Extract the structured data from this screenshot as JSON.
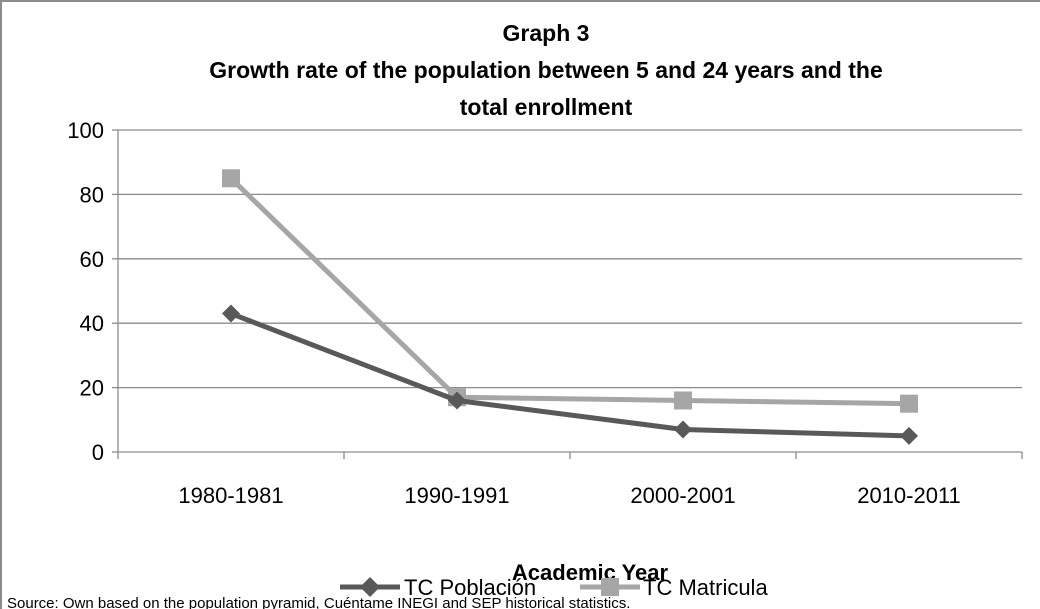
{
  "chart_data": {
    "type": "line",
    "title_lines": [
      "Graph 3",
      "Growth rate of the population between 5 and 24 years and the",
      "total enrollment"
    ],
    "xlabel": "Academic Year",
    "ylabel": "",
    "categories": [
      "1980-1981",
      "1990-1991",
      "2000-2001",
      "2010-2011"
    ],
    "ylim": [
      0,
      100
    ],
    "yticks": [
      "0",
      "20",
      "40",
      "60",
      "80",
      "100"
    ],
    "grid": true,
    "legend_position": "bottom",
    "series": [
      {
        "name": "TC Población",
        "values": [
          43,
          16,
          7,
          5
        ],
        "color": "#595959",
        "marker": "diamond"
      },
      {
        "name": "TC Matricula",
        "values": [
          85,
          17,
          16,
          15
        ],
        "color": "#a6a6a6",
        "marker": "square"
      }
    ],
    "source": "Source: Own based on the population pyramid, Cuéntame INEGI and SEP historical statistics."
  }
}
